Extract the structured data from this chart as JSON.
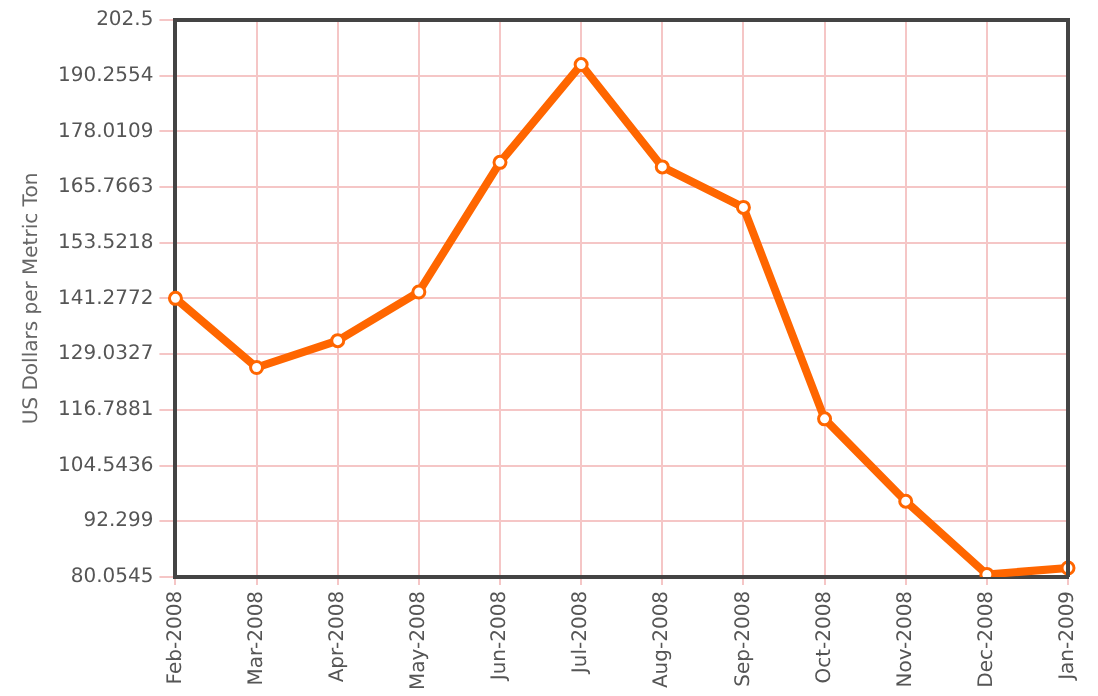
{
  "chart_data": {
    "type": "line",
    "ylabel": "US Dollars per Metric Ton",
    "categories": [
      "Feb-2008",
      "Mar-2008",
      "Apr-2008",
      "May-2008",
      "Jun-2008",
      "Jul-2008",
      "Aug-2008",
      "Sep-2008",
      "Oct-2008",
      "Nov-2008",
      "Dec-2008",
      "Jan-2009"
    ],
    "series": [
      {
        "color": "#ff6600",
        "values": [
          141.3,
          126.1,
          132.0,
          142.7,
          171.2,
          192.7,
          170.2,
          161.3,
          114.8,
          96.7,
          80.6,
          82.0
        ]
      }
    ],
    "ylim": [
      80.0545,
      202.5
    ],
    "yticks": [
      80.0545,
      92.299,
      104.5436,
      116.7881,
      129.0327,
      141.2772,
      153.5218,
      165.7663,
      178.0109,
      190.2554,
      202.5
    ],
    "grid": true,
    "marker": "circle",
    "line_style": "solid",
    "legend": false
  }
}
